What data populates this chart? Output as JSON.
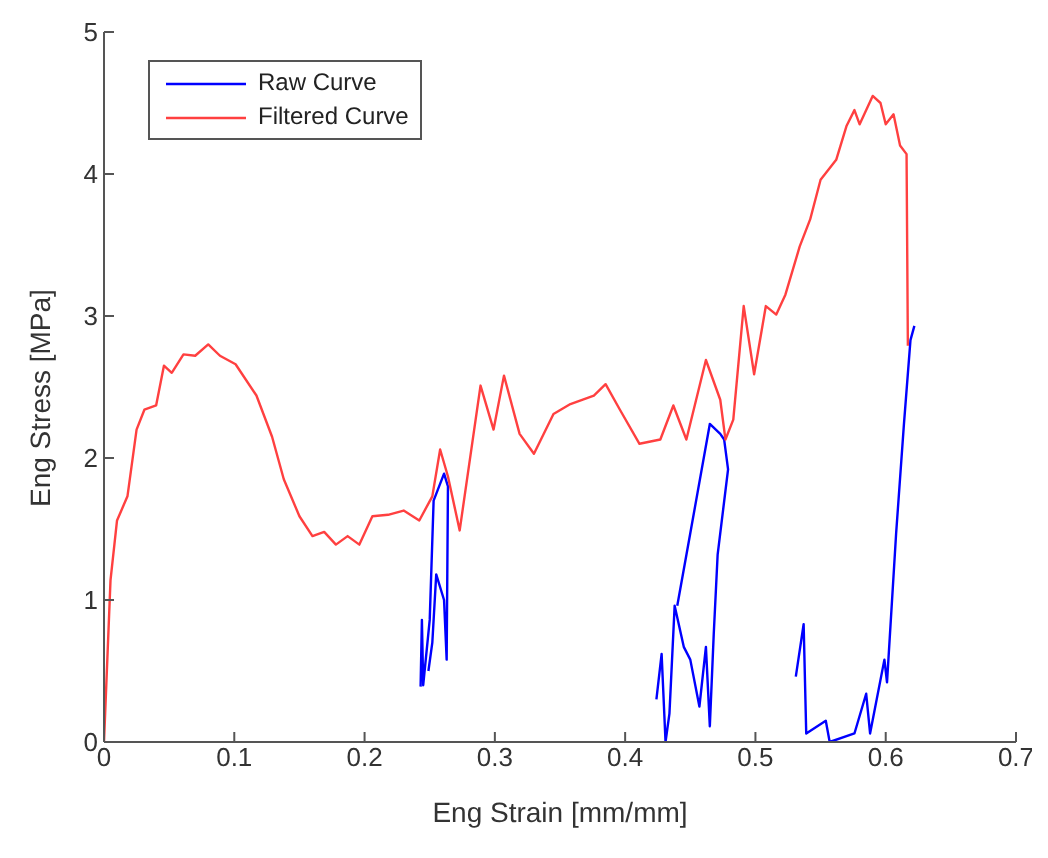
{
  "chart_data": {
    "type": "line",
    "xlabel": "Eng Strain [mm/mm]",
    "ylabel": "Eng Stress [MPa]",
    "xlim": [
      0,
      0.7
    ],
    "ylim": [
      0,
      5
    ],
    "xticks": [
      0,
      0.1,
      0.2,
      0.3,
      0.4,
      0.5,
      0.6,
      0.7
    ],
    "yticks": [
      0,
      1,
      2,
      3,
      4,
      5
    ],
    "legend": "top left",
    "marker": "none",
    "line_style": "solid",
    "series": [
      {
        "name": "Raw Curve",
        "color": "#0000ff",
        "x": [
          0.243,
          0.244,
          0.245,
          0.25,
          0.253,
          0.261,
          0.264,
          0.263,
          0.261,
          0.255,
          0.252,
          0.249,
          null,
          0.424,
          0.428,
          0.431,
          0.434,
          0.438,
          0.445,
          0.45,
          0.457,
          0.462,
          0.465,
          0.468,
          0.471,
          0.479,
          0.476,
          0.473,
          0.465,
          0.45,
          0.44,
          null,
          0.531,
          0.537,
          0.539,
          0.554,
          0.557,
          0.576,
          0.585,
          0.588,
          0.599,
          0.601,
          0.608,
          0.614,
          0.619,
          0.622
        ],
        "values": [
          0.39,
          0.86,
          0.4,
          0.86,
          1.7,
          1.89,
          1.8,
          0.58,
          1.0,
          1.18,
          0.7,
          0.5,
          null,
          0.3,
          0.62,
          0,
          0.2,
          0.96,
          0.67,
          0.58,
          0.25,
          0.67,
          0.11,
          0.76,
          1.32,
          1.92,
          2.13,
          2.17,
          2.24,
          1.47,
          0.96,
          null,
          0.46,
          0.83,
          0.06,
          0.15,
          0,
          0.06,
          0.34,
          0.06,
          0.58,
          0.42,
          1.47,
          2.24,
          2.83,
          2.93
        ]
      },
      {
        "name": "Filtered Curve",
        "color": "#ff4040",
        "x": [
          0,
          0.005,
          0.01,
          0.018,
          0.025,
          0.031,
          0.04,
          0.046,
          0.052,
          0.061,
          0.07,
          0.08,
          0.089,
          0.101,
          0.117,
          0.129,
          0.138,
          0.15,
          0.16,
          0.169,
          0.178,
          0.187,
          0.196,
          0.206,
          0.218,
          0.23,
          0.242,
          0.252,
          0.258,
          0.264,
          0.273,
          0.289,
          0.299,
          0.307,
          0.319,
          0.33,
          0.345,
          0.358,
          0.376,
          0.385,
          0.396,
          0.411,
          0.427,
          0.437,
          0.447,
          0.462,
          0.473,
          0.477,
          0.483,
          0.491,
          0.499,
          0.508,
          0.516,
          0.523,
          0.534,
          0.542,
          0.55,
          0.562,
          0.57,
          0.576,
          0.58,
          0.59,
          0.596,
          0.6,
          0.606,
          0.611,
          0.616,
          0.617
        ],
        "values": [
          0,
          1.14,
          1.56,
          1.73,
          2.2,
          2.34,
          2.37,
          2.65,
          2.6,
          2.73,
          2.72,
          2.8,
          2.72,
          2.66,
          2.44,
          2.15,
          1.85,
          1.59,
          1.45,
          1.48,
          1.39,
          1.45,
          1.39,
          1.59,
          1.6,
          1.63,
          1.56,
          1.73,
          2.06,
          1.87,
          1.49,
          2.51,
          2.2,
          2.58,
          2.17,
          2.03,
          2.31,
          2.38,
          2.44,
          2.52,
          2.34,
          2.1,
          2.13,
          2.37,
          2.13,
          2.69,
          2.41,
          2.13,
          2.27,
          3.07,
          2.59,
          3.07,
          3.01,
          3.15,
          3.49,
          3.68,
          3.96,
          4.1,
          4.34,
          4.45,
          4.35,
          4.55,
          4.5,
          4.35,
          4.42,
          4.2,
          4.14,
          2.79
        ]
      }
    ]
  }
}
